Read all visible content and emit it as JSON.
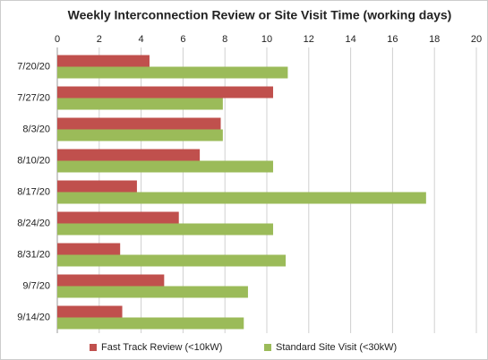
{
  "chart_data": {
    "type": "hbar",
    "title": "Weekly Interconnection Review or Site Visit Time (working days)",
    "categories": [
      "7/20/20",
      "7/27/20",
      "8/3/20",
      "8/10/20",
      "8/17/20",
      "8/24/20",
      "8/31/20",
      "9/7/20",
      "9/14/20"
    ],
    "series": [
      {
        "name": "Fast Track Review (<10kW)",
        "color": "#c0504d",
        "values": [
          4.4,
          10.3,
          7.8,
          6.8,
          3.8,
          5.8,
          3.0,
          5.1,
          3.1
        ]
      },
      {
        "name": "Standard Site Visit (<30kW)",
        "color": "#9bbb59",
        "values": [
          11.0,
          7.9,
          7.9,
          10.3,
          17.6,
          10.3,
          10.9,
          9.1,
          8.9
        ]
      }
    ],
    "xlim": [
      0,
      20
    ],
    "xticks": [
      0,
      2,
      4,
      6,
      8,
      10,
      12,
      14,
      16,
      18,
      20
    ],
    "grid": true,
    "legend": "bottom"
  }
}
